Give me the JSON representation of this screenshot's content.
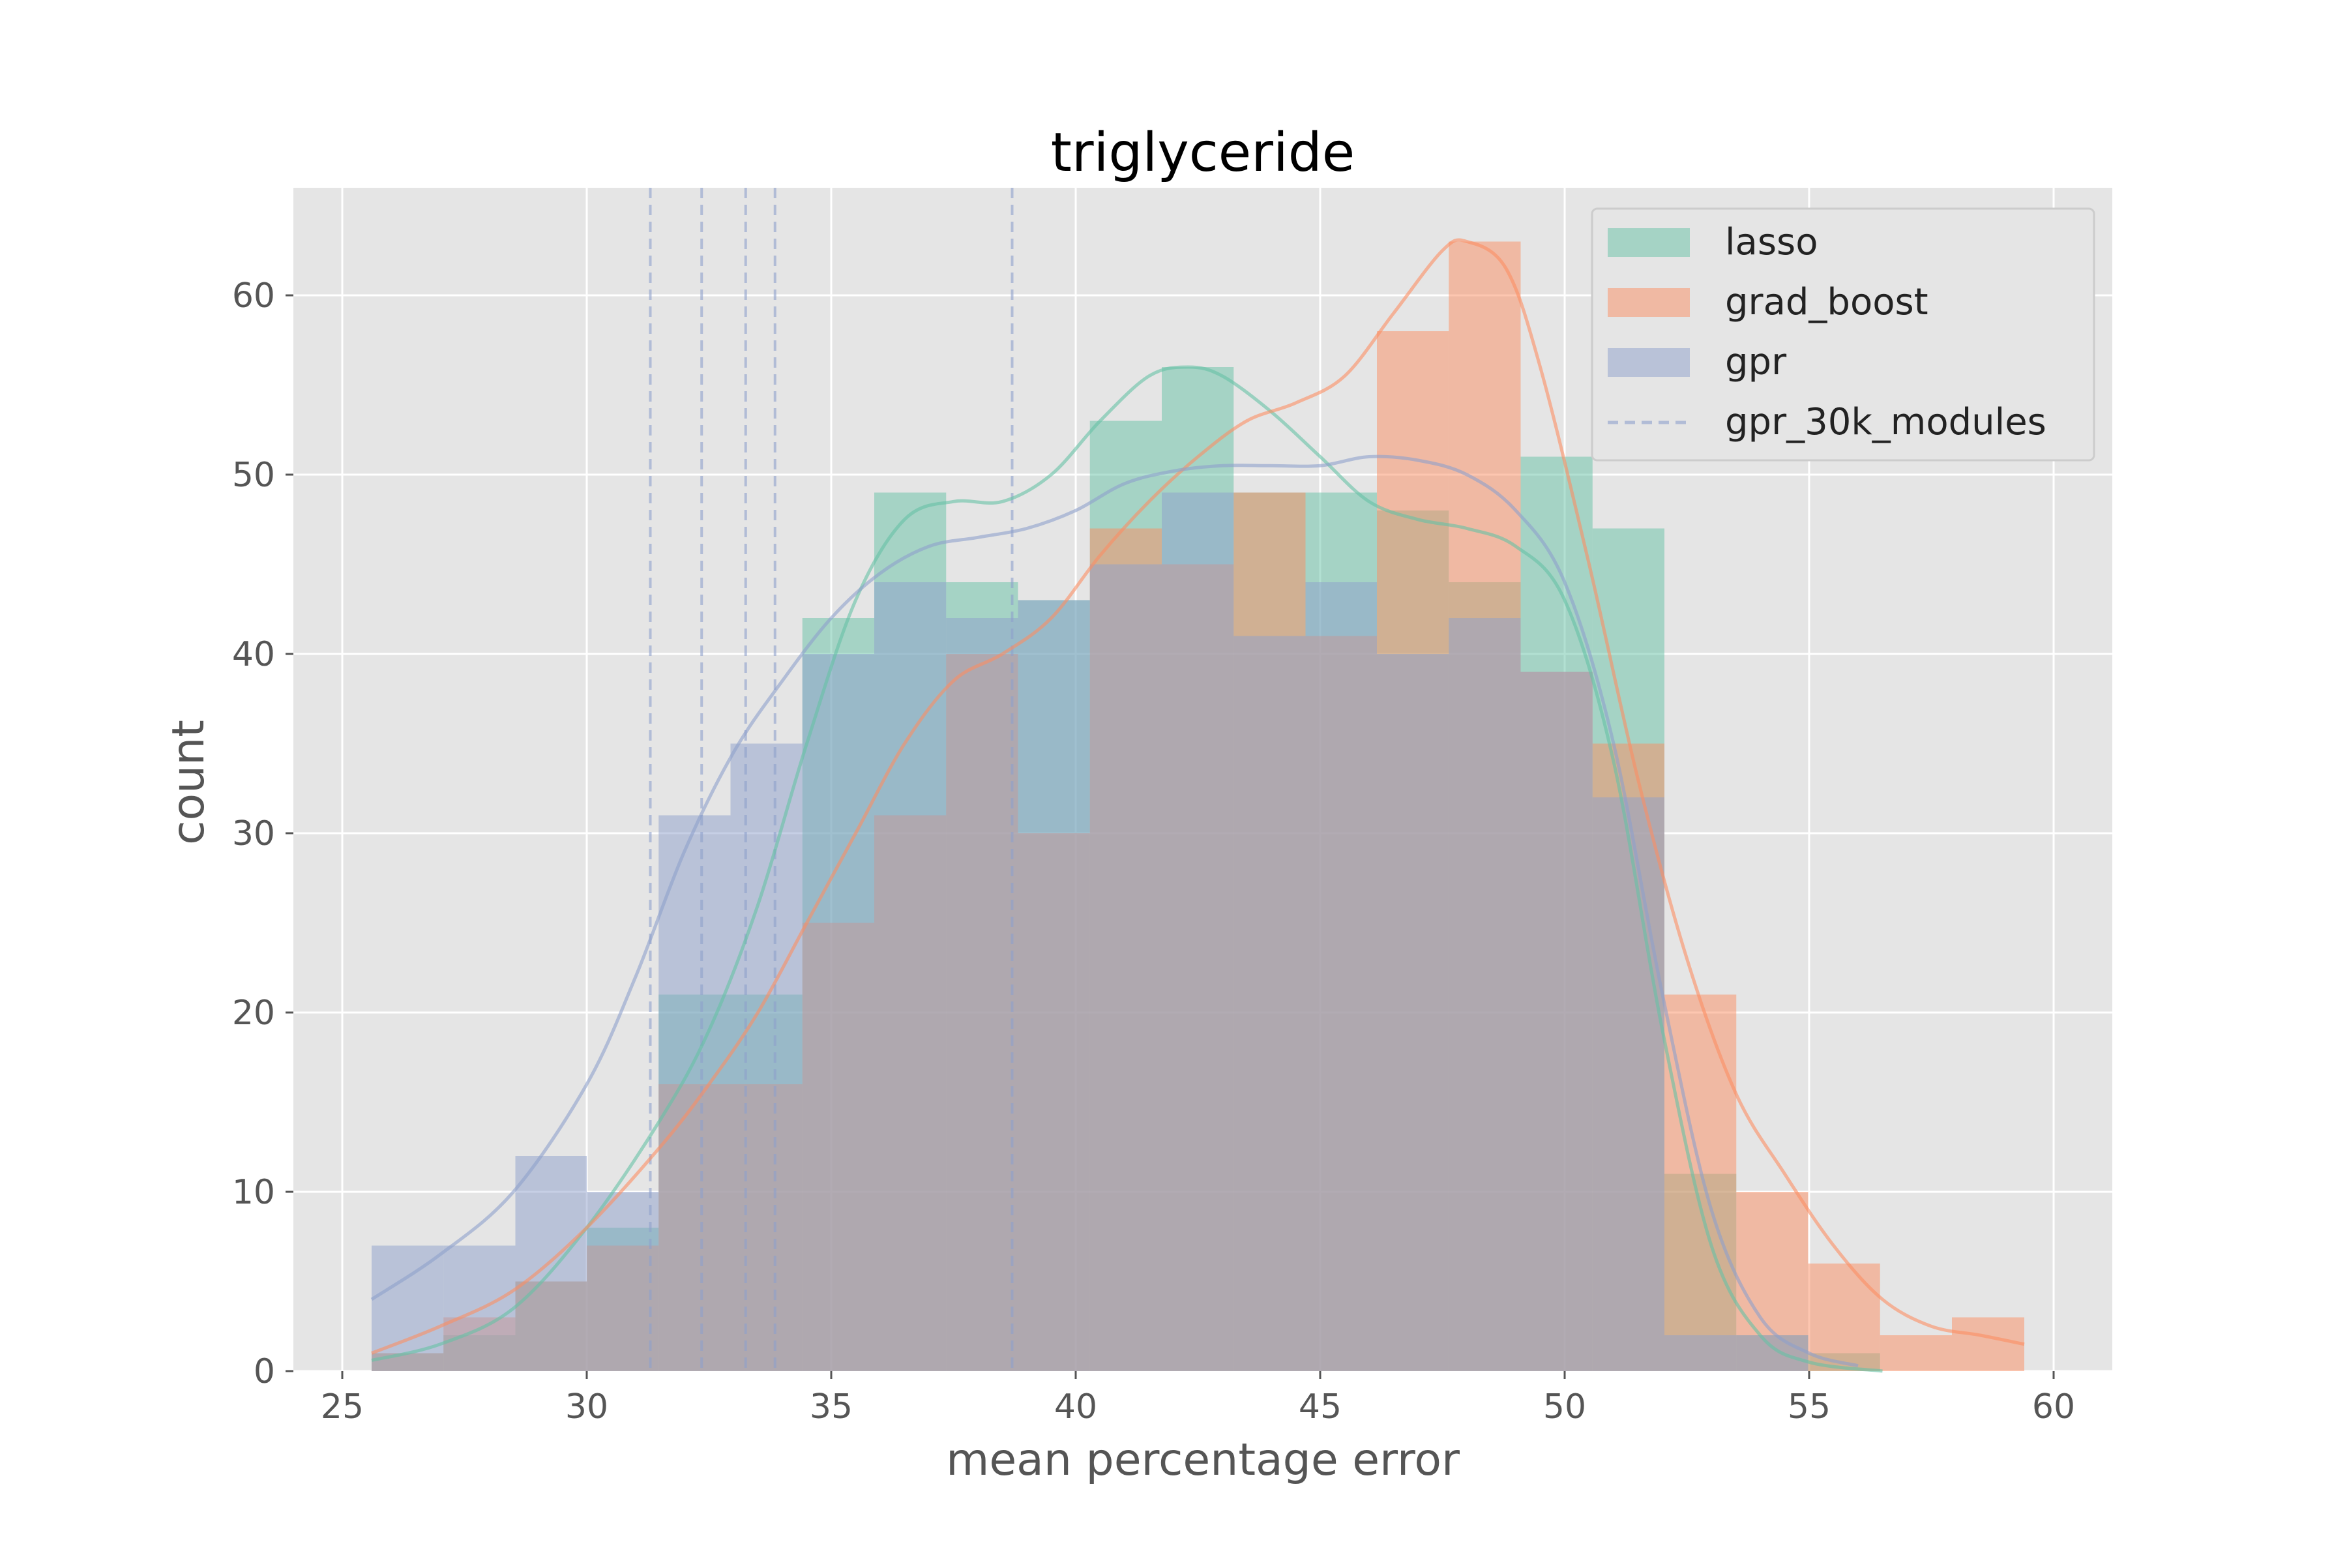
{
  "chart_data": {
    "type": "bar",
    "title": "triglyceride",
    "xlabel": "mean percentage error",
    "ylabel": "count",
    "xlim": [
      24,
      61.2
    ],
    "ylim": [
      0,
      66
    ],
    "xticks": [
      25,
      30,
      35,
      40,
      45,
      50,
      55,
      60
    ],
    "yticks": [
      0,
      10,
      20,
      30,
      40,
      50,
      60
    ],
    "grid": true,
    "legend_position": "top-right",
    "bin_edges": [
      25.6,
      27.07,
      28.54,
      30.0,
      31.47,
      32.94,
      34.41,
      35.88,
      37.35,
      38.82,
      40.29,
      41.76,
      43.23,
      44.7,
      46.16,
      47.63,
      49.1,
      50.57,
      52.04,
      53.51,
      54.98,
      56.45,
      57.92,
      59.4
    ],
    "series": [
      {
        "name": "lasso",
        "color": "#66c2a5",
        "values": [
          1,
          2,
          5,
          8,
          21,
          21,
          42,
          49,
          44,
          43,
          53,
          56,
          49,
          49,
          48,
          44,
          51,
          47,
          11,
          2,
          1,
          0,
          0
        ],
        "kde": [
          [
            25.6,
            0.6
          ],
          [
            27,
            1.5
          ],
          [
            28.5,
            3.5
          ],
          [
            30,
            8
          ],
          [
            31.5,
            14
          ],
          [
            32.5,
            19
          ],
          [
            33.5,
            26
          ],
          [
            34.5,
            35
          ],
          [
            35.5,
            43
          ],
          [
            36.5,
            47.5
          ],
          [
            37.5,
            48.5
          ],
          [
            38.5,
            48.5
          ],
          [
            39.5,
            50
          ],
          [
            40.5,
            53
          ],
          [
            41.5,
            55.5
          ],
          [
            42.3,
            56
          ],
          [
            43,
            55.5
          ],
          [
            44,
            53.5
          ],
          [
            45,
            51
          ],
          [
            46,
            48.5
          ],
          [
            47,
            47.5
          ],
          [
            48,
            47
          ],
          [
            49,
            46
          ],
          [
            50,
            43
          ],
          [
            51,
            34
          ],
          [
            52,
            19
          ],
          [
            53,
            7
          ],
          [
            54,
            2
          ],
          [
            55,
            0.5
          ],
          [
            56.5,
            0
          ]
        ]
      },
      {
        "name": "grad_boost",
        "color": "#fc8d62",
        "values": [
          1,
          3,
          5,
          7,
          16,
          16,
          25,
          31,
          40,
          30,
          47,
          45,
          49,
          41,
          58,
          63,
          39,
          35,
          21,
          10,
          6,
          2,
          3
        ],
        "kde": [
          [
            25.6,
            1
          ],
          [
            27,
            2.5
          ],
          [
            28.5,
            4.5
          ],
          [
            30,
            8
          ],
          [
            31.5,
            12.5
          ],
          [
            32.5,
            16
          ],
          [
            33.5,
            20
          ],
          [
            34.5,
            25
          ],
          [
            35.5,
            30
          ],
          [
            36.5,
            35
          ],
          [
            37.5,
            38.5
          ],
          [
            38.5,
            40
          ],
          [
            39.5,
            42
          ],
          [
            40.5,
            45.5
          ],
          [
            41.5,
            48.5
          ],
          [
            42.5,
            51
          ],
          [
            43.5,
            53
          ],
          [
            44.5,
            54
          ],
          [
            45.5,
            55.5
          ],
          [
            46.5,
            59
          ],
          [
            47.5,
            62.5
          ],
          [
            48,
            63
          ],
          [
            48.8,
            61.5
          ],
          [
            49.5,
            56
          ],
          [
            50.5,
            45
          ],
          [
            51.5,
            33
          ],
          [
            52.5,
            23
          ],
          [
            53.5,
            15.5
          ],
          [
            54.5,
            11
          ],
          [
            55.5,
            7
          ],
          [
            56.5,
            4
          ],
          [
            57.5,
            2.5
          ],
          [
            58.5,
            2
          ],
          [
            59.4,
            1.5
          ]
        ]
      },
      {
        "name": "gpr",
        "color": "#8da0cb",
        "values": [
          7,
          7,
          12,
          10,
          31,
          35,
          40,
          44,
          42,
          43,
          45,
          49,
          41,
          44,
          40,
          42,
          39,
          32,
          2,
          2,
          0,
          0,
          0
        ],
        "kde": [
          [
            25.6,
            4
          ],
          [
            27,
            6.5
          ],
          [
            28.5,
            10
          ],
          [
            30,
            16
          ],
          [
            31,
            22
          ],
          [
            32,
            29
          ],
          [
            33,
            34.5
          ],
          [
            34,
            38.5
          ],
          [
            35,
            42
          ],
          [
            36,
            44.5
          ],
          [
            37,
            46
          ],
          [
            38,
            46.5
          ],
          [
            39,
            47
          ],
          [
            40,
            48
          ],
          [
            41,
            49.5
          ],
          [
            42,
            50.2
          ],
          [
            43,
            50.5
          ],
          [
            44,
            50.5
          ],
          [
            45,
            50.5
          ],
          [
            46,
            51
          ],
          [
            47,
            50.8
          ],
          [
            48,
            50
          ],
          [
            49,
            48
          ],
          [
            50,
            44
          ],
          [
            51,
            35
          ],
          [
            52,
            21
          ],
          [
            53,
            9
          ],
          [
            54,
            3
          ],
          [
            55,
            1
          ],
          [
            56,
            0.3
          ]
        ]
      }
    ],
    "reference_lines": {
      "name": "gpr_30k_modules",
      "color": "#8da0cb",
      "x": [
        31.3,
        32.35,
        33.25,
        33.85,
        38.7
      ]
    }
  }
}
